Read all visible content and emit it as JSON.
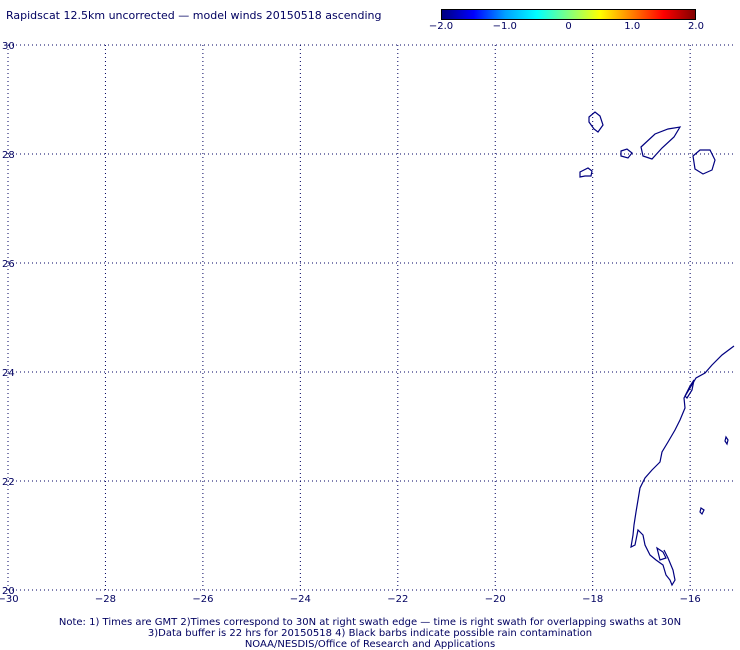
{
  "title": "Rapidscat 12.5km uncorrected — model winds 20150518 ascending",
  "colorbar": {
    "colors": [
      "#000080",
      "#0000ff",
      "#00a0ff",
      "#00ffff",
      "#80ff80",
      "#ffff00",
      "#ff8000",
      "#ff0000",
      "#800000"
    ],
    "labels": [
      "−2.0",
      "−1.0",
      "0",
      "1.0",
      "2.0"
    ],
    "range": [
      -2.0,
      2.0
    ]
  },
  "map": {
    "lon_range": [
      -30,
      -15.1
    ],
    "lat_range": [
      20,
      30
    ],
    "grid": "dotted",
    "x_ticks": [
      {
        "value": -30,
        "label": "−30"
      },
      {
        "value": -28,
        "label": "−28"
      },
      {
        "value": -26,
        "label": "−26"
      },
      {
        "value": -24,
        "label": "−24"
      },
      {
        "value": -22,
        "label": "−22"
      },
      {
        "value": -20,
        "label": "−20"
      },
      {
        "value": -18,
        "label": "−18"
      },
      {
        "value": -16,
        "label": "−16"
      }
    ],
    "y_ticks": [
      {
        "value": 30,
        "label": "30"
      },
      {
        "value": 28,
        "label": "28"
      },
      {
        "value": 26,
        "label": "26"
      },
      {
        "value": 24,
        "label": "24"
      },
      {
        "value": 22,
        "label": "22"
      },
      {
        "value": 20,
        "label": "20"
      }
    ],
    "coastline_color": "#000080"
  },
  "notes": [
    "Note: 1) Times are GMT 2)Times correspond to 30N at right swath edge — time is right swath for overlapping swaths at 30N",
    "3)Data buffer is 22 hrs for 20150518 4) Black barbs indicate possible rain contamination",
    "NOAA/NESDIS/Office of Research and Applications"
  ]
}
